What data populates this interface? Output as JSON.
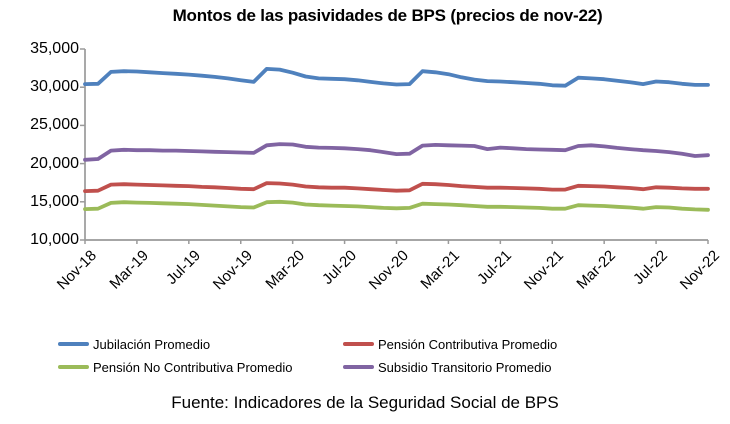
{
  "title": "Montos de las pasividades de BPS (precios de nov-22)",
  "source_note": "Fuente: Indicadores de la Seguridad Social de BPS",
  "colors": {
    "axis": "#9a9a9a",
    "text": "#000000",
    "jubilacion": "#4F81BD",
    "pension_contributiva": "#C0504D",
    "pension_no_contributiva": "#9BBB59",
    "subsidio_transitorio": "#8064A2"
  },
  "chart_data": {
    "type": "line",
    "title": "Montos de las pasividades de BPS (precios de nov-22)",
    "xlabel": "",
    "ylabel": "",
    "ylim": [
      10000,
      35000
    ],
    "y_tick_values": [
      35000,
      30000,
      25000,
      20000,
      15000,
      10000
    ],
    "y_tick_labels": [
      "35,000",
      "30,000",
      "25,000",
      "20,000",
      "15,000",
      "10,000"
    ],
    "x_tick_labels": [
      "Nov-18",
      "Mar-19",
      "Jul-19",
      "Nov-19",
      "Mar-20",
      "Jul-20",
      "Nov-20",
      "Mar-21",
      "Jul-21",
      "Nov-21",
      "Mar-22",
      "Jul-22",
      "Nov-22"
    ],
    "x_tick_every": 4,
    "n_points": 49,
    "x_range_note": "monthly points from Nov-18 to Nov-22",
    "grid": false,
    "legend_position": "bottom, two columns",
    "series": [
      {
        "name": "Jubilación Promedio",
        "color": "#4F81BD",
        "values": [
          30400,
          30450,
          32000,
          32100,
          32050,
          31950,
          31850,
          31750,
          31650,
          31500,
          31350,
          31150,
          30900,
          30700,
          32400,
          32300,
          31900,
          31400,
          31150,
          31100,
          31050,
          30900,
          30700,
          30500,
          30350,
          30400,
          32100,
          31950,
          31700,
          31300,
          31000,
          30800,
          30750,
          30650,
          30550,
          30450,
          30250,
          30200,
          31250,
          31150,
          31050,
          30850,
          30650,
          30400,
          30750,
          30650,
          30450,
          30300,
          30300
        ]
      },
      {
        "name": "Pensión Contributiva Promedio",
        "color": "#C0504D",
        "values": [
          16400,
          16450,
          17250,
          17300,
          17250,
          17200,
          17150,
          17100,
          17050,
          16950,
          16900,
          16800,
          16700,
          16650,
          17450,
          17400,
          17250,
          17000,
          16900,
          16850,
          16850,
          16750,
          16650,
          16550,
          16450,
          16500,
          17350,
          17300,
          17200,
          17050,
          16950,
          16850,
          16850,
          16800,
          16750,
          16700,
          16600,
          16600,
          17100,
          17050,
          17000,
          16900,
          16800,
          16650,
          16900,
          16850,
          16750,
          16700,
          16700
        ]
      },
      {
        "name": "Pensión No Contributiva Promedio",
        "color": "#9BBB59",
        "values": [
          14050,
          14100,
          14850,
          14950,
          14900,
          14850,
          14800,
          14750,
          14700,
          14600,
          14500,
          14400,
          14300,
          14250,
          14950,
          15000,
          14900,
          14650,
          14550,
          14500,
          14450,
          14400,
          14300,
          14200,
          14150,
          14200,
          14750,
          14700,
          14650,
          14550,
          14450,
          14350,
          14350,
          14300,
          14250,
          14200,
          14100,
          14100,
          14550,
          14500,
          14450,
          14350,
          14250,
          14100,
          14300,
          14250,
          14100,
          14000,
          13950
        ]
      },
      {
        "name": "Subsidio Transitorio Promedio",
        "color": "#8064A2",
        "values": [
          20500,
          20600,
          21700,
          21800,
          21750,
          21750,
          21700,
          21700,
          21650,
          21600,
          21550,
          21500,
          21450,
          21400,
          22400,
          22550,
          22500,
          22200,
          22100,
          22050,
          22000,
          21900,
          21750,
          21500,
          21250,
          21300,
          22350,
          22450,
          22400,
          22350,
          22300,
          21900,
          22100,
          22000,
          21900,
          21850,
          21800,
          21750,
          22300,
          22400,
          22250,
          22050,
          21900,
          21750,
          21650,
          21500,
          21300,
          21000,
          21100
        ]
      }
    ]
  }
}
